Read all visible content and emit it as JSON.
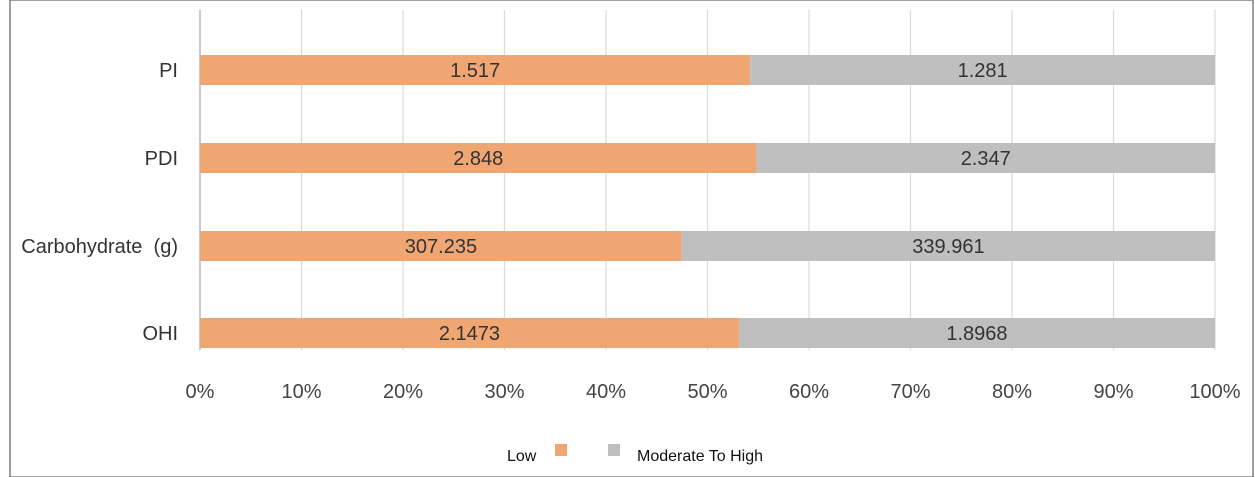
{
  "chart_data": {
    "type": "bar",
    "orientation": "horizontal",
    "stacking": "percent",
    "categories": [
      "PI",
      "PDI",
      "Carbohydrate  (g)",
      "OHI"
    ],
    "series": [
      {
        "name": "Low",
        "values": [
          1.517,
          2.848,
          307.235,
          2.1473
        ],
        "labels": [
          "1.517",
          "2.848",
          "307.235",
          "2.1473"
        ],
        "color": "#f0a673"
      },
      {
        "name": "Moderate To High",
        "values": [
          1.281,
          2.347,
          339.961,
          1.8968
        ],
        "labels": [
          "1.281",
          "2.347",
          "339.961",
          "1.8968"
        ],
        "color": "#bfbfbf"
      }
    ],
    "x_ticks": [
      "0%",
      "10%",
      "20%",
      "30%",
      "40%",
      "50%",
      "60%",
      "70%",
      "80%",
      "90%",
      "100%"
    ],
    "xlim": [
      0,
      100
    ],
    "grid": true,
    "legend_position": "bottom"
  }
}
